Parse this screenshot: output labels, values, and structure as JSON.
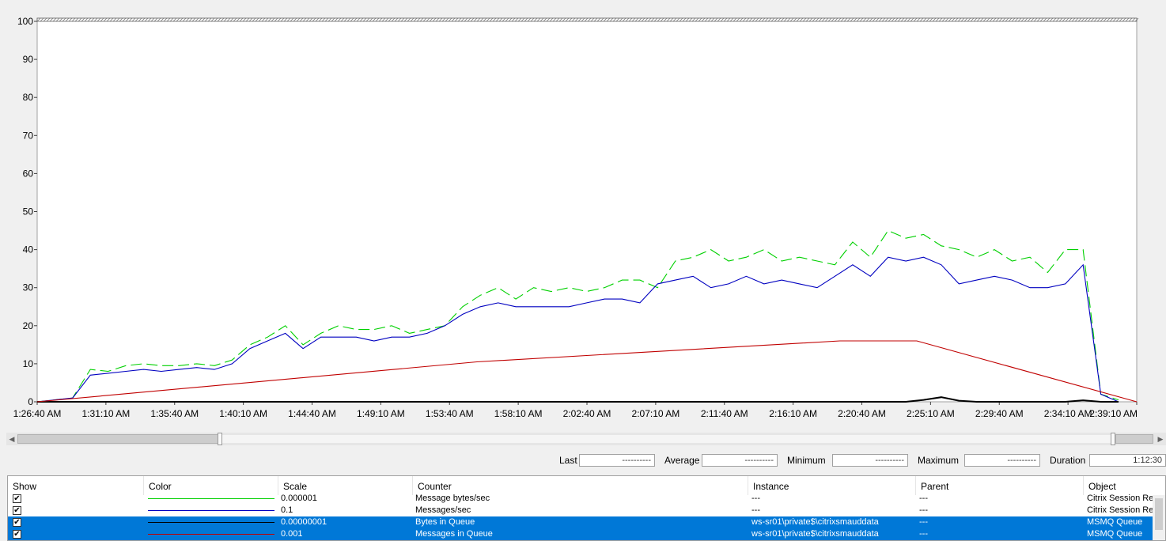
{
  "chart_data": {
    "type": "line",
    "y_ticks": [
      "100",
      "90",
      "80",
      "70",
      "60",
      "50",
      "40",
      "30",
      "20",
      "10",
      "0"
    ],
    "x_ticks": [
      "1:26:40 AM",
      "1:31:10 AM",
      "1:35:40 AM",
      "1:40:10 AM",
      "1:44:40 AM",
      "1:49:10 AM",
      "1:53:40 AM",
      "1:58:10 AM",
      "2:02:40 AM",
      "2:07:10 AM",
      "2:11:40 AM",
      "2:16:10 AM",
      "2:20:40 AM",
      "2:25:10 AM",
      "2:29:40 AM",
      "2:34:10 AM",
      "2:39:10 AM"
    ],
    "ylim": [
      0,
      100
    ],
    "grid": false,
    "series": [
      {
        "name": "Message bytes/sec",
        "color": "#00d000",
        "style": "dashed",
        "values": [
          0,
          0.5,
          1,
          8.5,
          8,
          9.5,
          10,
          9.5,
          9.5,
          10,
          9.5,
          11,
          15,
          17,
          20,
          15,
          18,
          20,
          19,
          19,
          20,
          18,
          19,
          20,
          25,
          28,
          30,
          27,
          30,
          29,
          30,
          29,
          30,
          32,
          32,
          30,
          37,
          38,
          40,
          37,
          38,
          40,
          37,
          38,
          37,
          36,
          42,
          38,
          45,
          43,
          44,
          41,
          40,
          38,
          40,
          37,
          38,
          34,
          40,
          40,
          2,
          0.5
        ]
      },
      {
        "name": "Messages/sec",
        "color": "#0000c0",
        "style": "solid",
        "values": [
          0,
          0.5,
          1,
          7,
          7.5,
          8,
          8.5,
          8,
          8.5,
          9,
          8.5,
          10,
          14,
          16,
          18,
          14,
          17,
          17,
          17,
          16,
          17,
          17,
          18,
          20,
          23,
          25,
          26,
          25,
          25,
          25,
          25,
          26,
          27,
          27,
          26,
          31,
          32,
          33,
          30,
          31,
          33,
          31,
          32,
          31,
          30,
          33,
          36,
          33,
          38,
          37,
          38,
          36,
          31,
          32,
          33,
          32,
          30,
          30,
          31,
          36,
          2,
          0
        ]
      },
      {
        "name": "Bytes in Queue",
        "color": "#000000",
        "style": "solid",
        "values": [
          0,
          0,
          0,
          0,
          0,
          0,
          0,
          0,
          0,
          0,
          0,
          0,
          0,
          0,
          0,
          0,
          0,
          0,
          0,
          0,
          0,
          0,
          0,
          0,
          0,
          0,
          0,
          0,
          0,
          0,
          0,
          0,
          0,
          0,
          0,
          0,
          0,
          0,
          0,
          0,
          0,
          0,
          0,
          0,
          0,
          0,
          0,
          0,
          0,
          0,
          0.5,
          1.2,
          0.3,
          0,
          0,
          0,
          0,
          0,
          0,
          0.4,
          0,
          0
        ]
      },
      {
        "name": "Messages in Queue",
        "color": "#c00000",
        "style": "solid",
        "x": [
          0,
          40,
          73,
          80,
          100
        ],
        "values": [
          0,
          10.5,
          16,
          16,
          0
        ]
      }
    ]
  },
  "stats": {
    "last_label": "Last",
    "last_value": "----------",
    "average_label": "Average",
    "average_value": "----------",
    "minimum_label": "Minimum",
    "minimum_value": "----------",
    "maximum_label": "Maximum",
    "maximum_value": "----------",
    "duration_label": "Duration",
    "duration_value": "1:12:30"
  },
  "legend": {
    "headers": {
      "show": "Show",
      "color": "Color",
      "scale": "Scale",
      "counter": "Counter",
      "instance": "Instance",
      "parent": "Parent",
      "object": "Object"
    },
    "rows": [
      {
        "show": "✔",
        "color": "#00d000",
        "scale": "0.000001",
        "counter": "Message bytes/sec",
        "instance": "---",
        "parent": "---",
        "object": "Citrix Session Re",
        "selected": false
      },
      {
        "show": "✔",
        "color": "#0000c0",
        "scale": "0.1",
        "counter": "Messages/sec",
        "instance": "---",
        "parent": "---",
        "object": "Citrix Session Re",
        "selected": false
      },
      {
        "show": "✔",
        "color": "#000000",
        "scale": "0.00000001",
        "counter": "Bytes in Queue",
        "instance": "ws-sr01\\private$\\citrixsmauddata",
        "parent": "---",
        "object": "MSMQ Queue",
        "selected": true
      },
      {
        "show": "✔",
        "color": "#c00000",
        "scale": "0.001",
        "counter": "Messages in Queue",
        "instance": "ws-sr01\\private$\\citrixsmauddata",
        "parent": "---",
        "object": "MSMQ Queue",
        "selected": true
      }
    ]
  }
}
